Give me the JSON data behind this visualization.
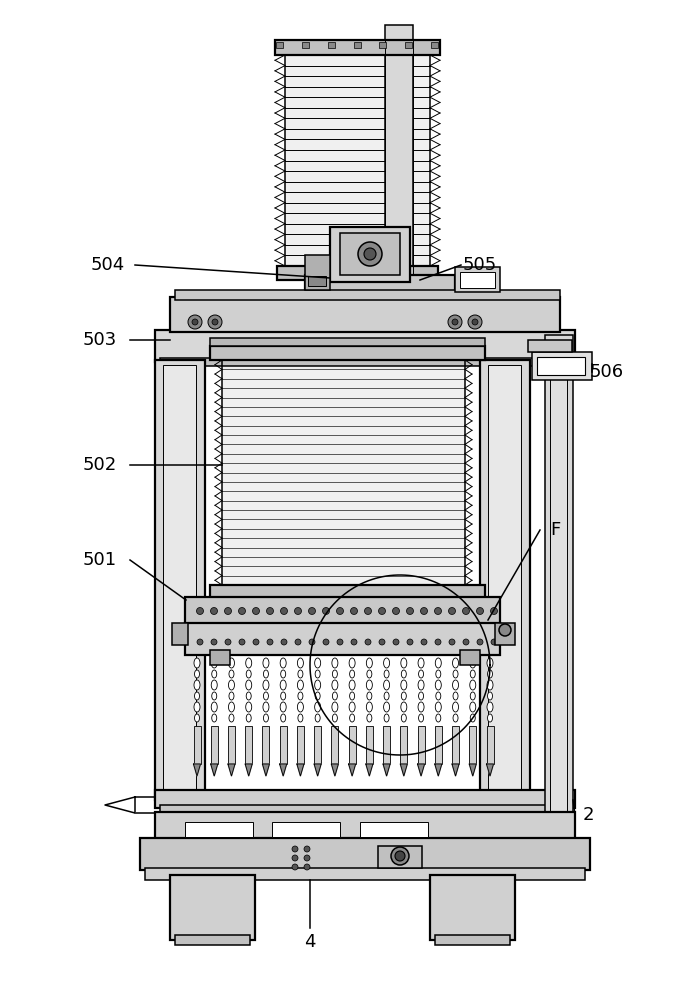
{
  "bg_color": "#ffffff",
  "lc": "#000000",
  "label_fontsize": 13,
  "lw_thin": 0.7,
  "lw_med": 1.1,
  "lw_thick": 1.6
}
